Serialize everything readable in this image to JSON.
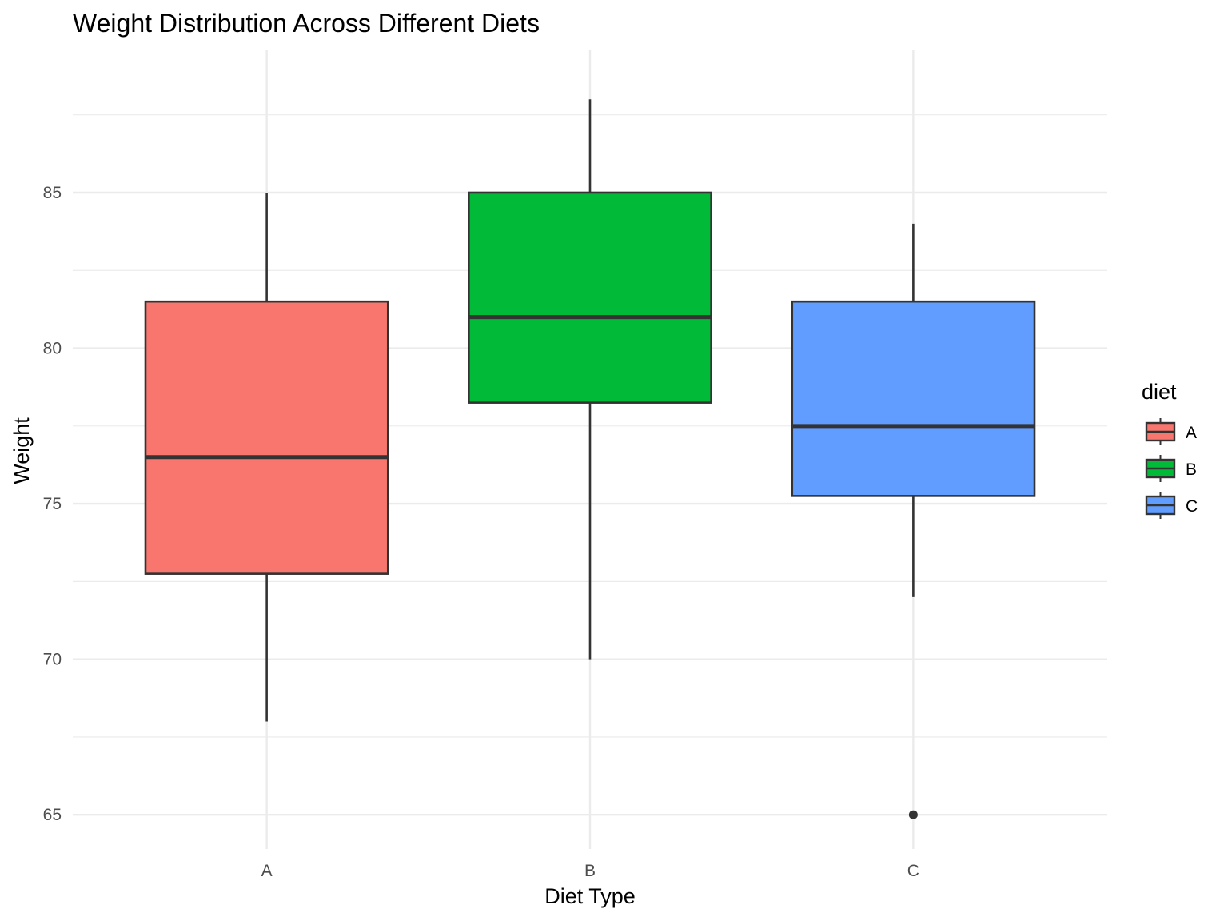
{
  "chart_data": {
    "type": "boxplot",
    "title": "Weight Distribution Across Different Diets",
    "xlabel": "Diet Type",
    "ylabel": "Weight",
    "categories": [
      "A",
      "B",
      "C"
    ],
    "ylim": [
      63.9,
      89.6
    ],
    "y_ticks": [
      65,
      70,
      75,
      80,
      85
    ],
    "y_tick_labels": [
      "65",
      "70",
      "75",
      "80",
      "85"
    ],
    "y_minor_ticks": [
      67.5,
      72.5,
      77.5,
      82.5,
      87.5
    ],
    "grid": true,
    "legend": {
      "title": "diet",
      "position": "right",
      "entries": [
        "A",
        "B",
        "C"
      ]
    },
    "series": [
      {
        "category": "A",
        "color": "#F8766D",
        "whisker_low": 68,
        "q1": 72.75,
        "median": 76.5,
        "q3": 81.5,
        "whisker_high": 85,
        "outliers": []
      },
      {
        "category": "B",
        "color": "#00BA38",
        "whisker_low": 70,
        "q1": 78.25,
        "median": 81,
        "q3": 85,
        "whisker_high": 88,
        "outliers": []
      },
      {
        "category": "C",
        "color": "#619CFF",
        "whisker_low": 72,
        "q1": 75.25,
        "median": 77.5,
        "q3": 81.5,
        "whisker_high": 84,
        "outliers": [
          65
        ]
      }
    ]
  }
}
